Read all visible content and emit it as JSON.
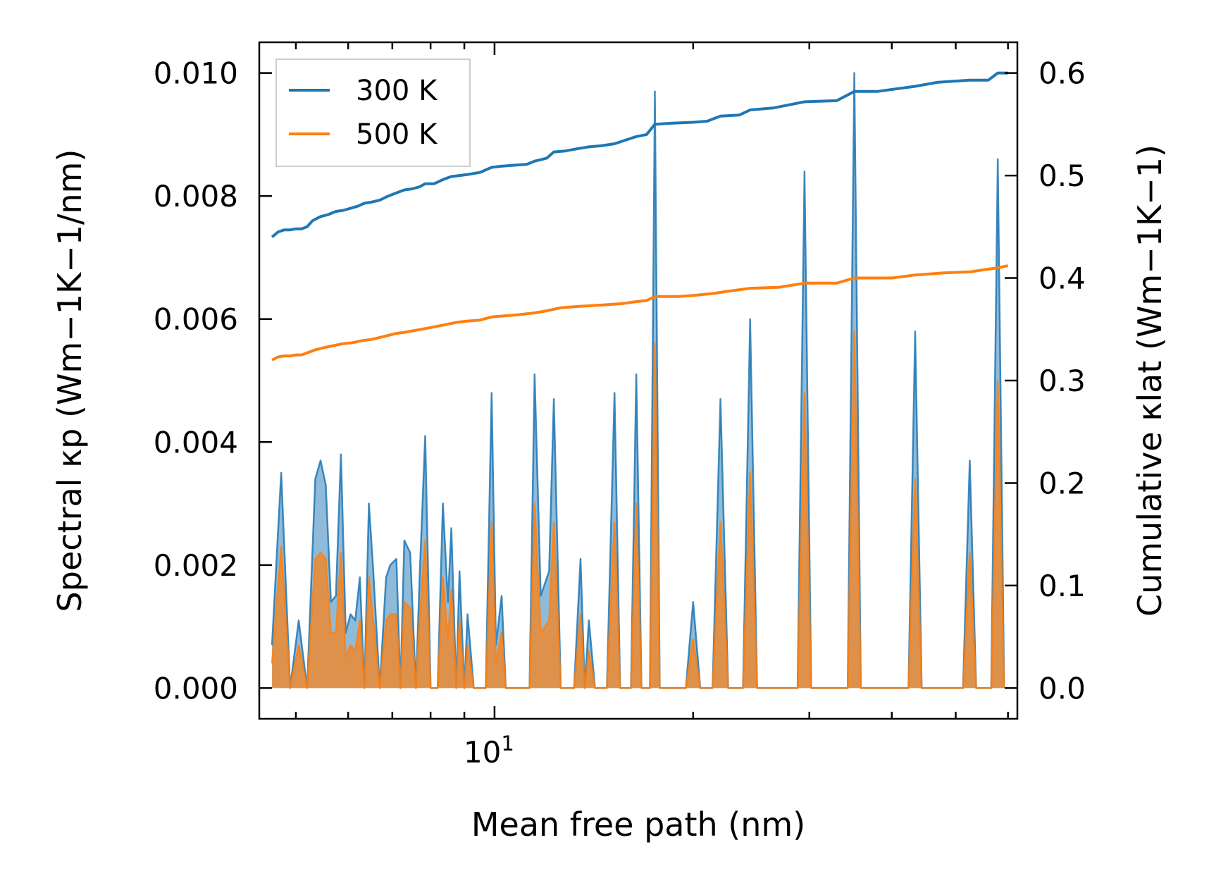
{
  "chart_data": {
    "type": "line",
    "title": "",
    "xlabel": "Mean free path (nm)",
    "x_scale": "log",
    "xlim": [
      4.4,
      62
    ],
    "x_major_tick_label": {
      "base": "10",
      "exp": "1"
    },
    "y_left": {
      "label": "Spectral κp (Wm−1K−1/nm)",
      "ylim": [
        -0.0005,
        0.0105
      ],
      "ticks": [
        0.0,
        0.002,
        0.004,
        0.006,
        0.008,
        0.01
      ],
      "tick_labels": [
        "0.000",
        "0.002",
        "0.004",
        "0.006",
        "0.008",
        "0.010"
      ]
    },
    "y_right": {
      "label": "Cumulative κlat (Wm−1K−1)",
      "ylim": [
        -0.03,
        0.63
      ],
      "ticks": [
        0.0,
        0.1,
        0.2,
        0.3,
        0.4,
        0.5,
        0.6
      ],
      "tick_labels": [
        "0.0",
        "0.1",
        "0.2",
        "0.3",
        "0.4",
        "0.5",
        "0.6"
      ]
    },
    "legend": {
      "position": "top-left",
      "entries": [
        {
          "label": "300 K",
          "color": "#1f77b4"
        },
        {
          "label": "500 K",
          "color": "#ff7f0e"
        }
      ]
    },
    "spectral_axis": "left",
    "cumulative_axis": "right",
    "series": [
      {
        "name": "300 K",
        "color": "#1f77b4",
        "spectral": [
          [
            4.6,
            0.0007
          ],
          [
            4.75,
            0.0035
          ],
          [
            4.9,
            0.0
          ],
          [
            5.05,
            0.0011
          ],
          [
            5.2,
            0.0
          ],
          [
            5.35,
            0.0034
          ],
          [
            5.45,
            0.0037
          ],
          [
            5.55,
            0.0033
          ],
          [
            5.65,
            0.0014
          ],
          [
            5.75,
            0.0015
          ],
          [
            5.85,
            0.0038
          ],
          [
            5.95,
            0.0009
          ],
          [
            6.05,
            0.0012
          ],
          [
            6.15,
            0.0011
          ],
          [
            6.25,
            0.0018
          ],
          [
            6.35,
            0.0
          ],
          [
            6.45,
            0.003
          ],
          [
            6.55,
            0.0019
          ],
          [
            6.7,
            0.0
          ],
          [
            6.85,
            0.0018
          ],
          [
            6.95,
            0.002
          ],
          [
            7.1,
            0.0021
          ],
          [
            7.2,
            0.0
          ],
          [
            7.3,
            0.0024
          ],
          [
            7.45,
            0.0022
          ],
          [
            7.6,
            0.0
          ],
          [
            7.7,
            0.0018
          ],
          [
            7.85,
            0.0041
          ],
          [
            8.0,
            0.0
          ],
          [
            8.2,
            0.0
          ],
          [
            8.35,
            0.003
          ],
          [
            8.5,
            0.0014
          ],
          [
            8.6,
            0.0026
          ],
          [
            8.75,
            0.0
          ],
          [
            8.85,
            0.0019
          ],
          [
            9.0,
            0.0
          ],
          [
            9.1,
            0.0012
          ],
          [
            9.3,
            0.0
          ],
          [
            9.5,
            0.0
          ],
          [
            9.7,
            0.0
          ],
          [
            9.9,
            0.0048
          ],
          [
            10.05,
            0.0007
          ],
          [
            10.25,
            0.0015
          ],
          [
            10.4,
            0.0
          ],
          [
            10.6,
            0.0
          ],
          [
            10.8,
            0.0
          ],
          [
            11.3,
            0.0
          ],
          [
            11.5,
            0.0051
          ],
          [
            11.75,
            0.0015
          ],
          [
            12.1,
            0.0019
          ],
          [
            12.3,
            0.0047
          ],
          [
            12.6,
            0.0
          ],
          [
            12.9,
            0.0
          ],
          [
            13.2,
            0.0
          ],
          [
            13.5,
            0.0021
          ],
          [
            13.7,
            0.0
          ],
          [
            13.9,
            0.0011
          ],
          [
            14.2,
            0.0
          ],
          [
            14.8,
            0.0
          ],
          [
            15.2,
            0.0048
          ],
          [
            15.5,
            0.0
          ],
          [
            16.1,
            0.0
          ],
          [
            16.4,
            0.0051
          ],
          [
            16.7,
            0.0
          ],
          [
            17.2,
            0.0
          ],
          [
            17.5,
            0.0097
          ],
          [
            17.8,
            0.0
          ],
          [
            19.5,
            0.0
          ],
          [
            20.0,
            0.0014
          ],
          [
            20.5,
            0.0
          ],
          [
            21.4,
            0.0
          ],
          [
            22.0,
            0.0047
          ],
          [
            22.6,
            0.0
          ],
          [
            23.8,
            0.0
          ],
          [
            24.4,
            0.006
          ],
          [
            25.0,
            0.0
          ],
          [
            28.8,
            0.0
          ],
          [
            29.5,
            0.0084
          ],
          [
            30.2,
            0.0
          ],
          [
            34.3,
            0.0
          ],
          [
            35.1,
            0.01
          ],
          [
            35.9,
            0.0
          ],
          [
            42.4,
            0.0
          ],
          [
            43.4,
            0.0058
          ],
          [
            44.4,
            0.0
          ],
          [
            51.3,
            0.0
          ],
          [
            52.5,
            0.0037
          ],
          [
            53.7,
            0.0
          ],
          [
            56.6,
            0.0
          ],
          [
            57.9,
            0.0086
          ],
          [
            59.2,
            0.0
          ]
        ],
        "cumulative": [
          [
            4.6,
            0.44
          ],
          [
            4.7,
            0.445
          ],
          [
            4.8,
            0.447
          ],
          [
            4.9,
            0.447
          ],
          [
            5.0,
            0.448
          ],
          [
            5.1,
            0.448
          ],
          [
            5.2,
            0.45
          ],
          [
            5.3,
            0.456
          ],
          [
            5.45,
            0.46
          ],
          [
            5.6,
            0.462
          ],
          [
            5.75,
            0.465
          ],
          [
            5.9,
            0.466
          ],
          [
            6.05,
            0.468
          ],
          [
            6.2,
            0.47
          ],
          [
            6.35,
            0.473
          ],
          [
            6.5,
            0.474
          ],
          [
            6.7,
            0.476
          ],
          [
            6.9,
            0.48
          ],
          [
            7.1,
            0.483
          ],
          [
            7.3,
            0.486
          ],
          [
            7.5,
            0.487
          ],
          [
            7.7,
            0.489
          ],
          [
            7.85,
            0.492
          ],
          [
            8.1,
            0.492
          ],
          [
            8.35,
            0.496
          ],
          [
            8.6,
            0.499
          ],
          [
            8.85,
            0.5
          ],
          [
            9.1,
            0.501
          ],
          [
            9.5,
            0.503
          ],
          [
            9.9,
            0.508
          ],
          [
            10.2,
            0.509
          ],
          [
            10.7,
            0.51
          ],
          [
            11.2,
            0.511
          ],
          [
            11.5,
            0.514
          ],
          [
            12.0,
            0.517
          ],
          [
            12.3,
            0.523
          ],
          [
            12.8,
            0.524
          ],
          [
            13.3,
            0.526
          ],
          [
            13.9,
            0.528
          ],
          [
            14.5,
            0.529
          ],
          [
            15.2,
            0.531
          ],
          [
            15.7,
            0.534
          ],
          [
            16.4,
            0.538
          ],
          [
            17.0,
            0.54
          ],
          [
            17.5,
            0.55
          ],
          [
            18.5,
            0.551
          ],
          [
            20.0,
            0.552
          ],
          [
            21.0,
            0.553
          ],
          [
            22.0,
            0.558
          ],
          [
            23.5,
            0.559
          ],
          [
            24.4,
            0.564
          ],
          [
            26.5,
            0.566
          ],
          [
            29.5,
            0.572
          ],
          [
            33.0,
            0.573
          ],
          [
            35.1,
            0.582
          ],
          [
            38.0,
            0.582
          ],
          [
            43.4,
            0.587
          ],
          [
            47.0,
            0.591
          ],
          [
            52.5,
            0.593
          ],
          [
            56.0,
            0.593
          ],
          [
            57.9,
            0.6
          ],
          [
            60.0,
            0.6
          ]
        ]
      },
      {
        "name": "500 K",
        "color": "#ff7f0e",
        "spectral": [
          [
            4.6,
            0.0004
          ],
          [
            4.75,
            0.0023
          ],
          [
            4.9,
            0.0
          ],
          [
            5.05,
            0.0007
          ],
          [
            5.2,
            0.0
          ],
          [
            5.35,
            0.0021
          ],
          [
            5.45,
            0.0022
          ],
          [
            5.55,
            0.0021
          ],
          [
            5.65,
            0.0009
          ],
          [
            5.75,
            0.0009
          ],
          [
            5.85,
            0.0022
          ],
          [
            5.95,
            0.0005
          ],
          [
            6.05,
            0.0007
          ],
          [
            6.15,
            0.0006
          ],
          [
            6.25,
            0.0011
          ],
          [
            6.35,
            0.0
          ],
          [
            6.45,
            0.0018
          ],
          [
            6.55,
            0.0011
          ],
          [
            6.7,
            0.0
          ],
          [
            6.85,
            0.0011
          ],
          [
            6.95,
            0.0012
          ],
          [
            7.1,
            0.0012
          ],
          [
            7.2,
            0.0
          ],
          [
            7.3,
            0.0014
          ],
          [
            7.45,
            0.0013
          ],
          [
            7.6,
            0.0
          ],
          [
            7.7,
            0.0011
          ],
          [
            7.85,
            0.0024
          ],
          [
            8.0,
            0.0
          ],
          [
            8.2,
            0.0
          ],
          [
            8.35,
            0.0018
          ],
          [
            8.5,
            0.0008
          ],
          [
            8.6,
            0.0016
          ],
          [
            8.75,
            0.0
          ],
          [
            8.85,
            0.0011
          ],
          [
            9.0,
            0.0
          ],
          [
            9.1,
            0.0007
          ],
          [
            9.3,
            0.0
          ],
          [
            9.5,
            0.0
          ],
          [
            9.7,
            0.0
          ],
          [
            9.9,
            0.0027
          ],
          [
            10.05,
            0.0004
          ],
          [
            10.25,
            0.0009
          ],
          [
            10.4,
            0.0
          ],
          [
            10.6,
            0.0
          ],
          [
            10.8,
            0.0
          ],
          [
            11.3,
            0.0
          ],
          [
            11.5,
            0.003
          ],
          [
            11.75,
            0.0009
          ],
          [
            12.1,
            0.0011
          ],
          [
            12.3,
            0.0027
          ],
          [
            12.6,
            0.0
          ],
          [
            12.9,
            0.0
          ],
          [
            13.2,
            0.0
          ],
          [
            13.5,
            0.0012
          ],
          [
            13.7,
            0.0
          ],
          [
            13.9,
            0.0006
          ],
          [
            14.2,
            0.0
          ],
          [
            14.8,
            0.0
          ],
          [
            15.2,
            0.0027
          ],
          [
            15.5,
            0.0
          ],
          [
            16.1,
            0.0
          ],
          [
            16.4,
            0.003
          ],
          [
            16.7,
            0.0
          ],
          [
            17.2,
            0.0
          ],
          [
            17.5,
            0.0056
          ],
          [
            17.8,
            0.0
          ],
          [
            19.5,
            0.0
          ],
          [
            20.0,
            0.0008
          ],
          [
            20.5,
            0.0
          ],
          [
            21.4,
            0.0
          ],
          [
            22.0,
            0.0027
          ],
          [
            22.6,
            0.0
          ],
          [
            23.8,
            0.0
          ],
          [
            24.4,
            0.0035
          ],
          [
            25.0,
            0.0
          ],
          [
            28.8,
            0.0
          ],
          [
            29.5,
            0.0048
          ],
          [
            30.2,
            0.0
          ],
          [
            34.3,
            0.0
          ],
          [
            35.1,
            0.0058
          ],
          [
            35.9,
            0.0
          ],
          [
            42.4,
            0.0
          ],
          [
            43.4,
            0.0034
          ],
          [
            44.4,
            0.0
          ],
          [
            51.3,
            0.0
          ],
          [
            52.5,
            0.0022
          ],
          [
            53.7,
            0.0
          ],
          [
            56.6,
            0.0
          ],
          [
            57.9,
            0.005
          ],
          [
            59.2,
            0.0
          ]
        ],
        "cumulative": [
          [
            4.6,
            0.32
          ],
          [
            4.7,
            0.323
          ],
          [
            4.8,
            0.324
          ],
          [
            4.9,
            0.324
          ],
          [
            5.0,
            0.325
          ],
          [
            5.1,
            0.325
          ],
          [
            5.2,
            0.327
          ],
          [
            5.35,
            0.33
          ],
          [
            5.5,
            0.332
          ],
          [
            5.7,
            0.334
          ],
          [
            5.9,
            0.336
          ],
          [
            6.1,
            0.337
          ],
          [
            6.3,
            0.339
          ],
          [
            6.5,
            0.34
          ],
          [
            6.7,
            0.342
          ],
          [
            6.9,
            0.344
          ],
          [
            7.1,
            0.346
          ],
          [
            7.3,
            0.347
          ],
          [
            7.6,
            0.349
          ],
          [
            7.9,
            0.351
          ],
          [
            8.2,
            0.353
          ],
          [
            8.5,
            0.355
          ],
          [
            8.8,
            0.357
          ],
          [
            9.1,
            0.358
          ],
          [
            9.5,
            0.359
          ],
          [
            9.9,
            0.362
          ],
          [
            10.3,
            0.363
          ],
          [
            10.8,
            0.364
          ],
          [
            11.5,
            0.366
          ],
          [
            12.0,
            0.368
          ],
          [
            12.6,
            0.371
          ],
          [
            13.2,
            0.372
          ],
          [
            14.0,
            0.373
          ],
          [
            14.8,
            0.374
          ],
          [
            15.6,
            0.375
          ],
          [
            16.4,
            0.377
          ],
          [
            17.0,
            0.378
          ],
          [
            17.5,
            0.382
          ],
          [
            19.0,
            0.382
          ],
          [
            20.0,
            0.383
          ],
          [
            21.5,
            0.385
          ],
          [
            22.5,
            0.387
          ],
          [
            24.4,
            0.39
          ],
          [
            27.0,
            0.391
          ],
          [
            29.5,
            0.395
          ],
          [
            33.0,
            0.395
          ],
          [
            35.1,
            0.4
          ],
          [
            40.0,
            0.4
          ],
          [
            43.4,
            0.403
          ],
          [
            48.0,
            0.405
          ],
          [
            52.5,
            0.406
          ],
          [
            57.9,
            0.41
          ],
          [
            60.0,
            0.412
          ]
        ]
      }
    ]
  }
}
